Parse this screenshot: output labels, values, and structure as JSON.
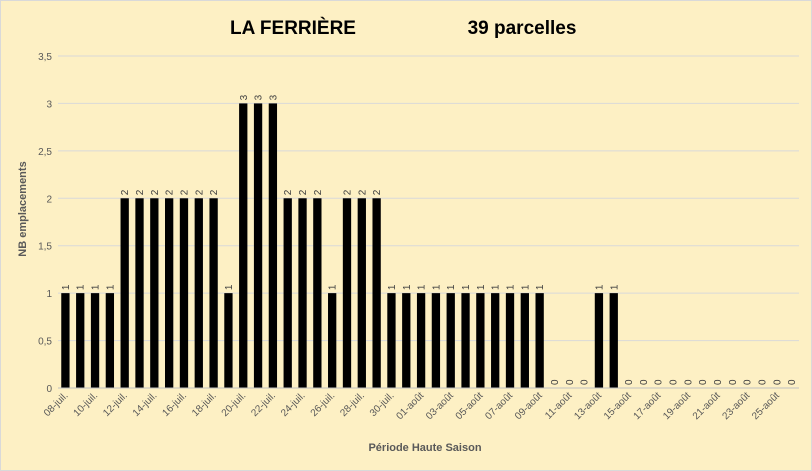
{
  "chart_data": {
    "type": "bar",
    "title": "LA FERRIÈRE",
    "subtitle": "39 parcelles",
    "xlabel": "Période Haute Saison",
    "ylabel": "NB emplacements",
    "ylim": [
      0,
      3.5
    ],
    "yticks": [
      "0",
      "0,5",
      "1",
      "1,5",
      "2",
      "2,5",
      "3",
      "3,5"
    ],
    "grid": true,
    "bar_color": "#000000",
    "background_color": "#fdf0c4",
    "categories": [
      "08-juil.",
      "09-juil.",
      "10-juil.",
      "11-juil.",
      "12-juil.",
      "13-juil.",
      "14-juil.",
      "15-juil.",
      "16-juil.",
      "17-juil.",
      "18-juil.",
      "19-juil.",
      "20-juil.",
      "21-juil.",
      "22-juil.",
      "23-juil.",
      "24-juil.",
      "25-juil.",
      "26-juil.",
      "27-juil.",
      "28-juil.",
      "29-juil.",
      "30-juil.",
      "31-juil.",
      "01-août",
      "02-août",
      "03-août",
      "04-août",
      "05-août",
      "06-août",
      "07-août",
      "08-août",
      "09-août",
      "10-août",
      "11-août",
      "12-août",
      "13-août",
      "14-août",
      "15-août",
      "16-août",
      "17-août",
      "18-août",
      "19-août",
      "20-août",
      "21-août",
      "22-août",
      "23-août",
      "24-août",
      "25-août",
      "26-août"
    ],
    "values": [
      1,
      1,
      1,
      1,
      2,
      2,
      2,
      2,
      2,
      2,
      2,
      1,
      3,
      3,
      3,
      2,
      2,
      2,
      1,
      2,
      2,
      2,
      1,
      1,
      1,
      1,
      1,
      1,
      1,
      1,
      1,
      1,
      1,
      0,
      0,
      0,
      1,
      1,
      0,
      0,
      0,
      0,
      0,
      0,
      0,
      0,
      0,
      0,
      0,
      0
    ],
    "shown_xtick_labels": [
      "08-juil.",
      "10-juil.",
      "12-juil.",
      "14-juil.",
      "16-juil.",
      "18-juil.",
      "20-juil.",
      "22-juil.",
      "24-juil.",
      "26-juil.",
      "28-juil.",
      "30-juil.",
      "01-août",
      "03-août",
      "05-août",
      "07-août",
      "09-août",
      "11-août",
      "13-août",
      "15-août",
      "17-août",
      "19-août",
      "21-août",
      "23-août",
      "25-août"
    ]
  }
}
